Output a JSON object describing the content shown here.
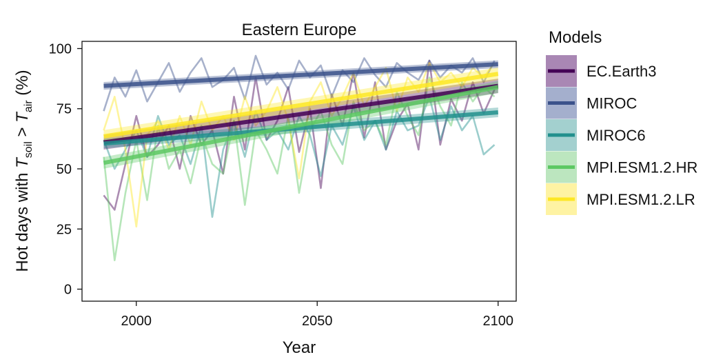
{
  "chart_data": {
    "type": "line",
    "title": "Eastern Europe",
    "xlabel": "Year",
    "ylabel": {
      "prefix": "Hot days with ",
      "t1": "T",
      "sub1": "soil",
      "mid": " > ",
      "t2": "T",
      "sub2": "air",
      "suffix": " (%)"
    },
    "xlim": [
      1985,
      2105
    ],
    "ylim": [
      -5,
      103
    ],
    "xticks": [
      2000,
      2050,
      2100
    ],
    "yticks": [
      0,
      25,
      50,
      75,
      100
    ],
    "grid": false,
    "legend": {
      "title": "Models",
      "position": "right"
    },
    "series": [
      {
        "name": "EC.Earth3",
        "color": "#440154",
        "band": "#a987b4",
        "trend": [
          [
            1991,
            61.0
          ],
          [
            2100,
            84.5
          ]
        ],
        "band_halfwidth": 3.0,
        "x": [
          1991,
          1994,
          1997,
          2000,
          2003,
          2006,
          2009,
          2012,
          2015,
          2018,
          2021,
          2024,
          2027,
          2030,
          2033,
          2036,
          2039,
          2042,
          2045,
          2048,
          2051,
          2054,
          2057,
          2060,
          2063,
          2066,
          2069,
          2072,
          2075,
          2078,
          2081,
          2084,
          2087,
          2090,
          2093,
          2096,
          2099
        ],
        "y": [
          39,
          33,
          52,
          72,
          55,
          60,
          68,
          50,
          72,
          60,
          66,
          48,
          80,
          58,
          88,
          62,
          70,
          84,
          57,
          75,
          42,
          81,
          68,
          90,
          63,
          86,
          58,
          70,
          77,
          58,
          95,
          60,
          79,
          70,
          86,
          73,
          83
        ]
      },
      {
        "name": "MIROC",
        "color": "#3b528b",
        "band": "#a4afcd",
        "trend": [
          [
            1991,
            84.5
          ],
          [
            2100,
            93.5
          ]
        ],
        "band_halfwidth": 1.6,
        "x": [
          1991,
          1994,
          1997,
          2000,
          2003,
          2006,
          2009,
          2012,
          2015,
          2018,
          2021,
          2024,
          2027,
          2030,
          2033,
          2036,
          2039,
          2042,
          2045,
          2048,
          2051,
          2054,
          2057,
          2060,
          2063,
          2066,
          2069,
          2072,
          2075,
          2078,
          2081,
          2084,
          2087,
          2090,
          2093,
          2096,
          2099
        ],
        "y": [
          74,
          88,
          80,
          91,
          78,
          86,
          94,
          82,
          90,
          96,
          84,
          87,
          92,
          79,
          97,
          85,
          90,
          83,
          95,
          88,
          93,
          80,
          91,
          86,
          96,
          89,
          84,
          94,
          90,
          87,
          95,
          88,
          93,
          90,
          96,
          86,
          95
        ]
      },
      {
        "name": "MIROC6",
        "color": "#21908d",
        "band": "#a3d0cf",
        "trend": [
          [
            1991,
            60.5
          ],
          [
            2100,
            73.5
          ]
        ],
        "band_halfwidth": 2.0,
        "x": [
          1991,
          1994,
          1997,
          2000,
          2003,
          2006,
          2009,
          2012,
          2015,
          2018,
          2021,
          2024,
          2027,
          2030,
          2033,
          2036,
          2039,
          2042,
          2045,
          2048,
          2051,
          2054,
          2057,
          2060,
          2063,
          2066,
          2069,
          2072,
          2075,
          2078,
          2081,
          2084,
          2087,
          2090,
          2093,
          2096,
          2099
        ],
        "y": [
          62,
          50,
          58,
          66,
          55,
          72,
          60,
          64,
          52,
          68,
          30,
          58,
          70,
          55,
          74,
          62,
          66,
          58,
          72,
          64,
          47,
          68,
          60,
          76,
          62,
          70,
          58,
          74,
          66,
          68,
          80,
          62,
          76,
          66,
          72,
          56,
          60
        ]
      },
      {
        "name": "MPI.ESM1.2.HR",
        "color": "#5dc863",
        "band": "#bce6bf",
        "trend": [
          [
            1991,
            52.5
          ],
          [
            2100,
            84.0
          ]
        ],
        "band_halfwidth": 2.4,
        "x": [
          1991,
          1994,
          1997,
          2000,
          2003,
          2006,
          2009,
          2012,
          2015,
          2018,
          2021,
          2024,
          2027,
          2030,
          2033,
          2036,
          2039,
          2042,
          2045,
          2048,
          2051,
          2054,
          2057,
          2060,
          2063,
          2066,
          2069,
          2072,
          2075,
          2078,
          2081,
          2084,
          2087,
          2090,
          2093,
          2096,
          2099
        ],
        "y": [
          55,
          12,
          40,
          62,
          37,
          68,
          50,
          58,
          44,
          64,
          52,
          48,
          70,
          35,
          66,
          58,
          48,
          72,
          40,
          66,
          74,
          60,
          52,
          78,
          66,
          70,
          60,
          82,
          72,
          64,
          88,
          76,
          68,
          86,
          78,
          84,
          80
        ]
      },
      {
        "name": "MPI.ESM1.2.LR",
        "color": "#fde725",
        "band": "#fef3a3",
        "trend": [
          [
            1991,
            63.5
          ],
          [
            2100,
            89.5
          ]
        ],
        "band_halfwidth": 2.6,
        "x": [
          1991,
          1994,
          1997,
          2000,
          2003,
          2006,
          2009,
          2012,
          2015,
          2018,
          2021,
          2024,
          2027,
          2030,
          2033,
          2036,
          2039,
          2042,
          2045,
          2048,
          2051,
          2054,
          2057,
          2060,
          2063,
          2066,
          2069,
          2072,
          2075,
          2078,
          2081,
          2084,
          2087,
          2090,
          2093,
          2096,
          2099
        ],
        "y": [
          66,
          80,
          58,
          26,
          64,
          70,
          58,
          72,
          60,
          78,
          66,
          72,
          62,
          80,
          68,
          74,
          84,
          70,
          46,
          78,
          86,
          72,
          80,
          90,
          76,
          84,
          92,
          74,
          88,
          82,
          94,
          86,
          90,
          84,
          92,
          88,
          94
        ]
      }
    ]
  }
}
